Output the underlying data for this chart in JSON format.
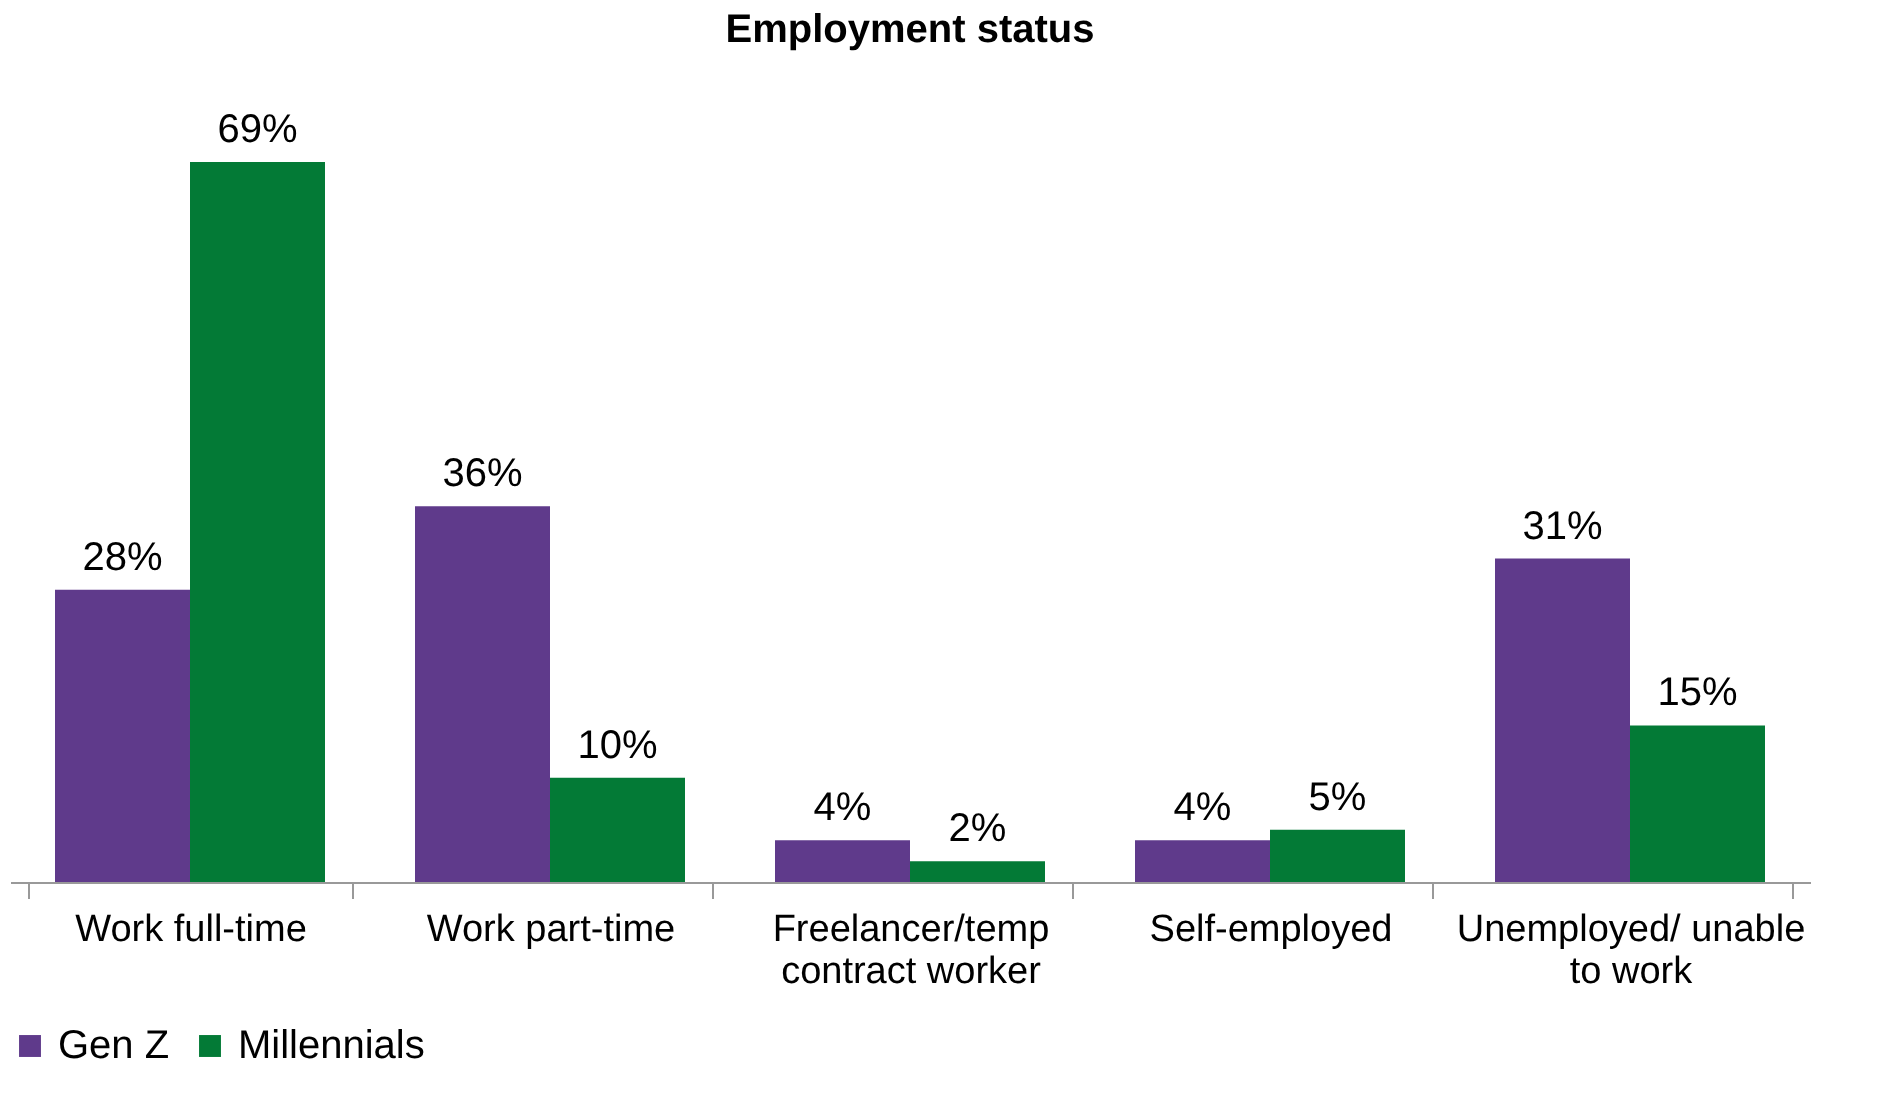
{
  "chart_data": {
    "type": "bar",
    "title": "Employment status",
    "categories": [
      "Work full-time",
      "Work part-time",
      "Freelancer/temp contract worker",
      "Self-employed",
      "Unemployed/ unable to work"
    ],
    "series": [
      {
        "name": "Gen Z",
        "color": "#5f3a8b",
        "values": [
          28,
          36,
          4,
          4,
          31
        ],
        "value_labels": [
          "28%",
          "36%",
          "4%",
          "4%",
          "31%"
        ]
      },
      {
        "name": "Millennials",
        "color": "#037a36",
        "values": [
          69,
          10,
          2,
          5,
          15
        ],
        "value_labels": [
          "69%",
          "10%",
          "2%",
          "5%",
          "15%"
        ]
      }
    ],
    "data_labels": true,
    "grid": false,
    "legend": "bottom"
  }
}
